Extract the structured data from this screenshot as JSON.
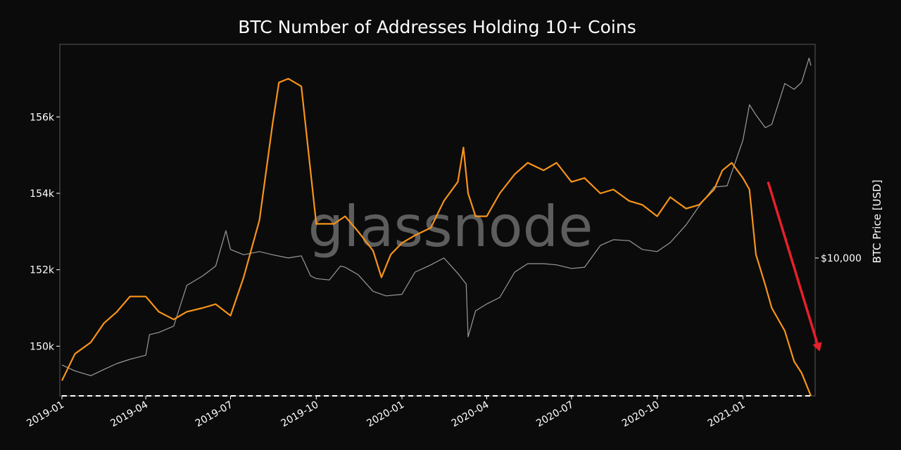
{
  "chart_data": {
    "type": "line",
    "title": "BTC Number of Addresses Holding 10+ Coins",
    "xlabel": "",
    "ylabel": "",
    "y2label": "BTC Price [USD]",
    "watermark": "glassnode",
    "x_ticks": [
      "2019-01",
      "2019-04",
      "2019-07",
      "2019-10",
      "2020-01",
      "2020-04",
      "2020-07",
      "2020-10",
      "2021-01"
    ],
    "y_ticks": [
      150000,
      152000,
      154000,
      156000
    ],
    "y_tick_labels": [
      "150k",
      "152k",
      "154k",
      "156k"
    ],
    "y2_ticks": [
      10000
    ],
    "y2_tick_labels": [
      "$10,000"
    ],
    "ylim": [
      148700,
      157900
    ],
    "y2_log_scale": true,
    "grid": false,
    "colors": {
      "addresses": "#f7931a",
      "price": "#9a9a9a",
      "arrow": "#e8202a",
      "reference": "#ffffff",
      "background": "#0b0b0b"
    },
    "series": [
      {
        "key": "addresses",
        "x": [
          "2019-01-01",
          "2019-01-15",
          "2019-02-01",
          "2019-02-15",
          "2019-03-01",
          "2019-03-15",
          "2019-04-01",
          "2019-04-15",
          "2019-05-01",
          "2019-05-15",
          "2019-06-01",
          "2019-06-15",
          "2019-07-01",
          "2019-07-15",
          "2019-08-01",
          "2019-08-15",
          "2019-08-22",
          "2019-09-01",
          "2019-09-15",
          "2019-10-01",
          "2019-10-08",
          "2019-10-20",
          "2019-11-01",
          "2019-11-15",
          "2019-12-01",
          "2019-12-10",
          "2019-12-20",
          "2020-01-01",
          "2020-01-15",
          "2020-02-01",
          "2020-02-15",
          "2020-03-01",
          "2020-03-07",
          "2020-03-12",
          "2020-03-20",
          "2020-04-01",
          "2020-04-15",
          "2020-05-01",
          "2020-05-15",
          "2020-06-01",
          "2020-06-15",
          "2020-07-01",
          "2020-07-15",
          "2020-08-01",
          "2020-08-15",
          "2020-09-01",
          "2020-09-15",
          "2020-10-01",
          "2020-10-15",
          "2020-11-01",
          "2020-11-15",
          "2020-12-01",
          "2020-12-10",
          "2020-12-20",
          "2021-01-01",
          "2021-01-08",
          "2021-01-15",
          "2021-01-25",
          "2021-02-01",
          "2021-02-15",
          "2021-02-25",
          "2021-03-05",
          "2021-03-15"
        ],
        "values": [
          149100,
          149800,
          150100,
          150600,
          150900,
          151300,
          151300,
          150900,
          150700,
          150900,
          151000,
          151100,
          150800,
          151800,
          153300,
          155800,
          156900,
          157000,
          156800,
          153200,
          153200,
          153200,
          153400,
          153000,
          152500,
          151800,
          152400,
          152700,
          152900,
          153100,
          153800,
          154300,
          155200,
          154000,
          153400,
          153400,
          154000,
          154500,
          154800,
          154600,
          154800,
          154300,
          154400,
          154000,
          154100,
          153800,
          153700,
          153400,
          153900,
          153600,
          153700,
          154100,
          154600,
          154800,
          154400,
          154100,
          152400,
          151600,
          151000,
          150400,
          149600,
          149300,
          148700
        ]
      },
      {
        "key": "price",
        "x": [
          "2019-01-01",
          "2019-01-15",
          "2019-02-01",
          "2019-02-15",
          "2019-03-01",
          "2019-03-15",
          "2019-04-01",
          "2019-04-05",
          "2019-04-15",
          "2019-05-01",
          "2019-05-15",
          "2019-06-01",
          "2019-06-15",
          "2019-06-26",
          "2019-07-01",
          "2019-07-15",
          "2019-08-01",
          "2019-08-15",
          "2019-09-01",
          "2019-09-15",
          "2019-09-25",
          "2019-10-01",
          "2019-10-15",
          "2019-10-27",
          "2019-11-01",
          "2019-11-15",
          "2019-12-01",
          "2019-12-15",
          "2020-01-01",
          "2020-01-15",
          "2020-02-01",
          "2020-02-15",
          "2020-03-01",
          "2020-03-10",
          "2020-03-12",
          "2020-03-20",
          "2020-04-01",
          "2020-04-15",
          "2020-05-01",
          "2020-05-15",
          "2020-06-01",
          "2020-06-15",
          "2020-07-01",
          "2020-07-15",
          "2020-08-01",
          "2020-08-15",
          "2020-09-01",
          "2020-09-15",
          "2020-10-01",
          "2020-10-15",
          "2020-11-01",
          "2020-11-15",
          "2020-12-01",
          "2020-12-15",
          "2021-01-01",
          "2021-01-08",
          "2021-01-15",
          "2021-01-25",
          "2021-02-01",
          "2021-02-15",
          "2021-02-25",
          "2021-03-05",
          "2021-03-13",
          "2021-03-15"
        ],
        "values": [
          3800,
          3600,
          3450,
          3650,
          3850,
          4000,
          4150,
          5000,
          5100,
          5400,
          7800,
          8500,
          9300,
          12800,
          10800,
          10300,
          10600,
          10300,
          10000,
          10200,
          8500,
          8300,
          8200,
          9300,
          9200,
          8600,
          7400,
          7100,
          7200,
          8800,
          9400,
          10000,
          8700,
          7900,
          4900,
          6200,
          6600,
          7000,
          8800,
          9500,
          9500,
          9400,
          9100,
          9200,
          11200,
          11800,
          11700,
          10800,
          10600,
          11500,
          13500,
          16000,
          19000,
          19200,
          29000,
          40000,
          36500,
          32500,
          33500,
          48500,
          46000,
          49000,
          61000,
          57000
        ]
      }
    ],
    "annotations": [
      {
        "type": "hline",
        "axis": "left",
        "y": 148700,
        "style": "dashed",
        "color": "#ffffff"
      },
      {
        "type": "arrow",
        "from": [
          "2021-01-28",
          154300
        ],
        "to": [
          "2021-03-24",
          149900
        ],
        "color": "#e8202a"
      }
    ]
  }
}
